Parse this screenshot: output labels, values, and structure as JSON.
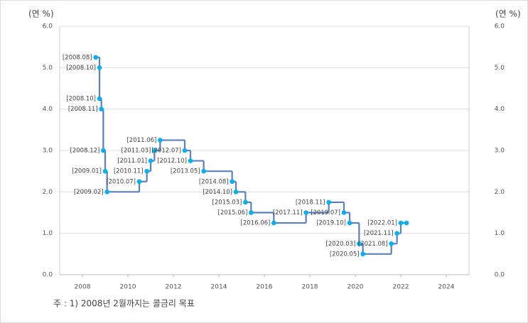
{
  "chart_data": {
    "type": "step",
    "y_unit_left": "(연 %)",
    "y_unit_right": "(연 %)",
    "footnote": "주 : 1) 2008년 2월까지는 콜금리 목표",
    "x": [
      2008.583,
      2008.75,
      2008.75,
      2008.833,
      2008.917,
      2009.0,
      2009.083,
      2010.5,
      2010.833,
      2011.0,
      2011.167,
      2011.417,
      2012.5,
      2012.75,
      2013.333,
      2014.583,
      2014.75,
      2015.167,
      2015.417,
      2016.417,
      2017.833,
      2018.833,
      2019.5,
      2019.75,
      2020.167,
      2020.333,
      2021.583,
      2021.833,
      2022.0,
      2022.25
    ],
    "values": [
      5.25,
      5.0,
      4.25,
      4.0,
      3.0,
      2.5,
      2.0,
      2.25,
      2.5,
      2.75,
      3.0,
      3.25,
      3.0,
      2.75,
      2.5,
      2.25,
      2.0,
      1.75,
      1.5,
      1.25,
      1.5,
      1.75,
      1.5,
      1.25,
      0.75,
      0.5,
      0.75,
      1.0,
      1.25,
      1.25
    ],
    "point_labels": [
      "[2008.08]",
      "[2008.10]",
      "[2008.10]",
      "[2008.11]",
      "[2008.12]",
      "[2009.01]",
      "[2009.02]",
      "[2010.07]",
      "[2010.11]",
      "[2011.01]",
      "[2011.03]",
      "[2011.06]",
      "[2012.07]",
      "[2012.10]",
      "[2013.05]",
      "[2014.08]",
      "[2014.10]",
      "[2015.03]",
      "[2015.06]",
      "[2016.06]",
      "[2017.11]",
      "[2018.11]",
      "[2019.07]",
      "[2019.10]",
      "[2020.03]",
      "[2020.05]",
      "[2021.08]",
      "[2021.11]",
      "[2022.01]",
      null
    ],
    "line_color": "#5b7fbf",
    "marker_color": "#00b0f0",
    "xlim": [
      2007,
      2025
    ],
    "xticks": [
      2008,
      2010,
      2012,
      2014,
      2016,
      2018,
      2020,
      2022,
      2024
    ],
    "ylim": [
      0,
      6
    ],
    "yticks": [
      {
        "value": 0,
        "label": "0.0"
      },
      {
        "value": 1,
        "label": "1.0"
      },
      {
        "value": 2,
        "label": "2.0"
      },
      {
        "value": 3,
        "label": "3.0"
      },
      {
        "value": 4,
        "label": "4.0"
      },
      {
        "value": 5,
        "label": "5.0"
      },
      {
        "value": 6,
        "label": "6.0"
      }
    ],
    "grid": true
  }
}
